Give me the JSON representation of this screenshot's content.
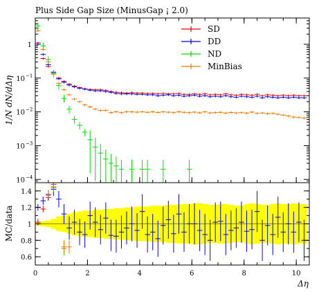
{
  "chart_data": [
    {
      "type": "scatter",
      "title": "Plus Side Gap Size (MinusGap ¡ 2.0)",
      "ylabel": "1/N dN/dΔη",
      "yscale": "log",
      "xlim": [
        0,
        10.5
      ],
      "ylim": [
        8e-05,
        6
      ],
      "y_ticks": [
        {
          "value": 1,
          "label": "1"
        },
        {
          "value": 0.1,
          "label": "10",
          "exp": "−1"
        },
        {
          "value": 0.01,
          "label": "10",
          "exp": "−2"
        },
        {
          "value": 0.001,
          "label": "10",
          "exp": "−3"
        },
        {
          "value": 0.0001,
          "label": "10",
          "exp": "−4"
        }
      ],
      "legend_position": "top-right",
      "series": [
        {
          "name": "SD",
          "color": "#ee0000",
          "x": [
            0.1,
            0.3,
            0.5,
            0.7,
            0.9,
            1.1,
            1.3,
            1.5,
            1.7,
            1.9,
            2.1,
            2.3,
            2.5,
            2.7,
            2.9,
            3.1,
            3.3,
            3.5,
            3.7,
            3.9,
            4.1,
            4.3,
            4.5,
            4.7,
            4.9,
            5.1,
            5.3,
            5.5,
            5.7,
            5.9,
            6.1,
            6.3,
            6.5,
            6.7,
            6.9,
            7.1,
            7.3,
            7.5,
            7.7,
            7.9,
            8.1,
            8.3,
            8.5,
            8.7,
            8.9,
            9.1,
            9.3,
            9.5,
            9.7,
            9.9,
            10.1,
            10.3
          ],
          "y": [
            1.1,
            0.38,
            0.22,
            0.14,
            0.1,
            0.08,
            0.066,
            0.058,
            0.052,
            0.048,
            0.046,
            0.045,
            0.045,
            0.043,
            0.04,
            0.038,
            0.037,
            0.036,
            0.037,
            0.036,
            0.036,
            0.035,
            0.035,
            0.034,
            0.035,
            0.034,
            0.034,
            0.035,
            0.033,
            0.033,
            0.034,
            0.033,
            0.034,
            0.032,
            0.033,
            0.032,
            0.034,
            0.032,
            0.031,
            0.033,
            0.032,
            0.031,
            0.033,
            0.03,
            0.032,
            0.031,
            0.03,
            0.031,
            0.03,
            0.031,
            0.03,
            0.03
          ]
        },
        {
          "name": "DD",
          "color": "#0000ee",
          "x": [
            0.1,
            0.3,
            0.5,
            0.7,
            0.9,
            1.1,
            1.3,
            1.5,
            1.7,
            1.9,
            2.1,
            2.3,
            2.5,
            2.7,
            2.9,
            3.1,
            3.3,
            3.5,
            3.7,
            3.9,
            4.1,
            4.3,
            4.5,
            4.7,
            4.9,
            5.1,
            5.3,
            5.5,
            5.7,
            5.9,
            6.1,
            6.3,
            6.5,
            6.7,
            6.9,
            7.1,
            7.3,
            7.5,
            7.7,
            7.9,
            8.1,
            8.3,
            8.5,
            8.7,
            8.9,
            9.1,
            9.3,
            9.5,
            9.7,
            9.9,
            10.1,
            10.3
          ],
          "y": [
            1.0,
            0.5,
            0.25,
            0.15,
            0.095,
            0.075,
            0.062,
            0.055,
            0.05,
            0.047,
            0.044,
            0.042,
            0.042,
            0.04,
            0.038,
            0.035,
            0.034,
            0.034,
            0.034,
            0.033,
            0.033,
            0.032,
            0.032,
            0.03,
            0.031,
            0.032,
            0.03,
            0.031,
            0.029,
            0.03,
            0.031,
            0.029,
            0.03,
            0.028,
            0.029,
            0.028,
            0.03,
            0.028,
            0.027,
            0.029,
            0.028,
            0.027,
            0.029,
            0.026,
            0.028,
            0.027,
            0.026,
            0.027,
            0.026,
            0.027,
            0.026,
            0.026
          ]
        },
        {
          "name": "ND",
          "color": "#00dd00",
          "x": [
            0.1,
            0.3,
            0.5,
            0.7,
            0.9,
            1.1,
            1.3,
            1.5,
            1.7,
            1.9,
            2.1,
            2.3,
            2.5,
            2.7,
            2.9,
            3.1,
            3.3,
            3.7,
            4.1,
            4.3,
            4.9,
            5.9
          ],
          "y": [
            3.5,
            0.9,
            0.35,
            0.14,
            0.06,
            0.025,
            0.012,
            0.006,
            0.004,
            0.0025,
            0.0015,
            0.0009,
            0.0006,
            0.0004,
            0.0003,
            0.00025,
            0.0002,
            0.0002,
            0.0002,
            0.0002,
            0.0002,
            0.0002
          ]
        },
        {
          "name": "MinBias",
          "color": "#ee7700",
          "x": [
            0.1,
            0.3,
            0.5,
            0.7,
            0.9,
            1.1,
            1.3,
            1.5,
            1.7,
            1.9,
            2.1,
            2.3,
            2.5,
            2.7,
            2.9,
            3.1,
            3.3,
            3.5,
            3.7,
            3.9,
            4.1,
            4.3,
            4.5,
            4.7,
            4.9,
            5.1,
            5.3,
            5.5,
            5.7,
            5.9,
            6.1,
            6.3,
            6.5,
            6.7,
            6.9,
            7.1,
            7.3,
            7.5,
            7.7,
            7.9,
            8.1,
            8.3,
            8.5,
            8.7,
            8.9,
            9.1,
            9.3,
            9.5,
            9.7,
            9.9,
            10.1,
            10.3
          ],
          "y": [
            2.5,
            0.7,
            0.3,
            0.13,
            0.07,
            0.045,
            0.032,
            0.024,
            0.02,
            0.016,
            0.014,
            0.012,
            0.011,
            0.011,
            0.0095,
            0.01,
            0.0095,
            0.01,
            0.01,
            0.0098,
            0.01,
            0.0097,
            0.01,
            0.0096,
            0.01,
            0.0098,
            0.0095,
            0.01,
            0.0097,
            0.0095,
            0.0098,
            0.0094,
            0.01,
            0.0093,
            0.0095,
            0.0097,
            0.0092,
            0.0096,
            0.0093,
            0.0095,
            0.0091,
            0.0098,
            0.009,
            0.0093,
            0.0088,
            0.009,
            0.0085,
            0.008,
            0.0075,
            0.007,
            0.0068,
            0.0065
          ]
        }
      ]
    },
    {
      "type": "scatter",
      "ylabel": "MC/data",
      "xlabel": "Δη",
      "xlim": [
        0,
        10.5
      ],
      "ylim": [
        0.5,
        1.5
      ],
      "x_ticks": [
        {
          "value": 0,
          "label": "0"
        },
        {
          "value": 2,
          "label": "2"
        },
        {
          "value": 4,
          "label": "4"
        },
        {
          "value": 6,
          "label": "6"
        },
        {
          "value": 8,
          "label": "8"
        },
        {
          "value": 10,
          "label": "10"
        }
      ],
      "y_ticks": [
        {
          "value": 0.6,
          "label": "0.6"
        },
        {
          "value": 0.8,
          "label": "0.8"
        },
        {
          "value": 1.0,
          "label": "1"
        },
        {
          "value": 1.2,
          "label": "1.2"
        },
        {
          "value": 1.4,
          "label": "1.4"
        }
      ],
      "band_color": "#ffff00",
      "band": {
        "x": [
          0.1,
          0.3,
          0.5,
          0.7,
          0.9,
          1.1,
          1.3,
          1.5,
          1.7,
          1.9,
          2.1,
          2.3,
          2.5,
          2.7,
          2.9,
          3.1,
          3.3,
          3.5,
          3.7,
          3.9,
          4.1,
          4.3,
          4.5,
          4.7,
          4.9,
          5.1,
          5.3,
          5.5,
          5.7,
          5.9,
          6.1,
          6.3,
          6.5,
          6.7,
          6.9,
          7.1,
          7.3,
          7.5,
          7.7,
          7.9,
          8.1,
          8.3,
          8.5,
          8.7,
          8.9,
          9.1,
          9.3,
          9.5,
          9.7,
          9.9,
          10.1,
          10.3
        ],
        "half_width": [
          0.02,
          0.03,
          0.04,
          0.06,
          0.09,
          0.1,
          0.12,
          0.14,
          0.15,
          0.16,
          0.16,
          0.17,
          0.17,
          0.18,
          0.18,
          0.19,
          0.19,
          0.2,
          0.2,
          0.21,
          0.21,
          0.21,
          0.22,
          0.22,
          0.22,
          0.23,
          0.23,
          0.24,
          0.24,
          0.24,
          0.25,
          0.25,
          0.24,
          0.23,
          0.23,
          0.24,
          0.24,
          0.23,
          0.22,
          0.22,
          0.24,
          0.25,
          0.24,
          0.23,
          0.23,
          0.24,
          0.25,
          0.24,
          0.24,
          0.25,
          0.24,
          0.24
        ]
      },
      "series": [
        {
          "name": "SD",
          "color": "#ee0000",
          "x": [
            0.1,
            0.3,
            0.5,
            0.7,
            0.9
          ],
          "y": [
            1.02,
            1.18,
            1.32,
            1.48,
            1.55
          ]
        },
        {
          "name": "DD",
          "color": "#0000ee",
          "x": [
            0.1,
            0.3,
            0.5,
            0.7,
            0.9,
            1.1,
            1.3,
            1.5,
            1.7,
            1.9,
            2.1,
            2.3,
            2.5,
            2.7,
            2.9,
            3.1,
            3.3,
            3.5,
            3.7,
            3.9,
            4.1,
            4.3,
            4.5,
            4.7,
            4.9,
            5.1,
            5.3,
            5.5,
            5.7,
            5.9,
            6.1,
            6.3,
            6.5,
            6.7,
            6.9,
            7.1,
            7.3,
            7.5,
            7.7,
            7.9,
            8.1,
            8.3,
            8.5,
            8.7,
            8.9,
            9.1,
            9.3,
            9.5,
            9.7,
            9.9,
            10.1,
            10.3
          ],
          "y": [
            1.2,
            1.28,
            1.35,
            1.42,
            1.3,
            1.12,
            0.95,
            1.02,
            0.9,
            0.87,
            1.1,
            1.02,
            0.93,
            1.07,
            0.86,
            0.85,
            0.9,
            0.95,
            1.0,
            0.92,
            1.15,
            0.87,
            0.9,
            0.82,
            0.98,
            1.05,
            0.88,
            1.12,
            0.9,
            1.0,
            1.0,
            0.92,
            0.87,
            0.8,
            1.02,
            1.03,
            0.87,
            0.92,
            0.95,
            1.02,
            0.91,
            0.93,
            1.15,
            0.8,
            0.98,
            0.87,
            1.08,
            0.9,
            1.0,
            0.9,
            1.02,
            0.8
          ],
          "err": [
            0.04,
            0.05,
            0.06,
            0.08,
            0.1,
            0.12,
            0.14,
            0.15,
            0.16,
            0.16,
            0.17,
            0.18,
            0.18,
            0.19,
            0.19,
            0.2,
            0.2,
            0.2,
            0.21,
            0.21,
            0.21,
            0.22,
            0.22,
            0.22,
            0.23,
            0.23,
            0.23,
            0.24,
            0.24,
            0.24,
            0.25,
            0.25,
            0.25,
            0.25,
            0.24,
            0.24,
            0.25,
            0.24,
            0.24,
            0.25,
            0.25,
            0.24,
            0.25,
            0.25,
            0.24,
            0.25,
            0.25,
            0.24,
            0.25,
            0.25,
            0.24,
            0.25
          ]
        },
        {
          "name": "ND",
          "color": "#00dd00",
          "x": [
            0.7,
            1.1
          ],
          "y": [
            1.44,
            0.7
          ],
          "err": [
            0.05,
            0.08
          ]
        },
        {
          "name": "MinBias",
          "color": "#ee7700",
          "x": [
            0.5,
            0.7,
            1.1,
            1.3
          ],
          "y": [
            1.36,
            1.45,
            0.72,
            0.72
          ],
          "err": [
            0.05,
            0.06,
            0.08,
            0.08
          ]
        }
      ]
    }
  ]
}
